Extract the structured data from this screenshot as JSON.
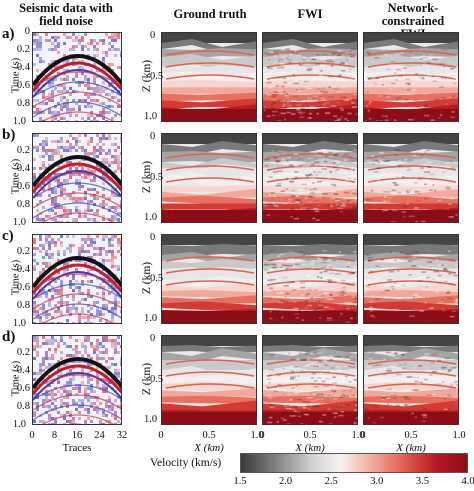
{
  "headers": {
    "seismic": "Seismic data with\nfield  noise",
    "ground_truth": "Ground truth",
    "fwi": "FWI",
    "network": "Network-constrained\nFWI"
  },
  "row_labels": [
    "a)",
    "b)",
    "c)",
    "d)"
  ],
  "seismic_axis": {
    "ylabel": "Time (s)",
    "yticks": [
      "0",
      "0.2",
      "0.4",
      "0.6",
      "0.8",
      "1.0"
    ],
    "xticks": [
      "0",
      "8",
      "16",
      "24",
      "32"
    ],
    "xlabel": "Traces"
  },
  "model_axis": {
    "ylabel": "Z (km)",
    "yticks": [
      "0",
      "0.5",
      "1.0"
    ],
    "xticks": [
      "0",
      "0.5",
      "1.0"
    ],
    "xlabel": "X (km)"
  },
  "colorbar": {
    "label": "Velocity (km/s)",
    "ticks": [
      "1.5",
      "2.0",
      "2.5",
      "3.0",
      "3.5",
      "4.0"
    ],
    "colors": [
      "#3a3a3a",
      "#8e8e8e",
      "#d4d4d4",
      "#f7f1ef",
      "#f3b4a6",
      "#e06050",
      "#b61a22",
      "#8c0d16"
    ]
  }
}
